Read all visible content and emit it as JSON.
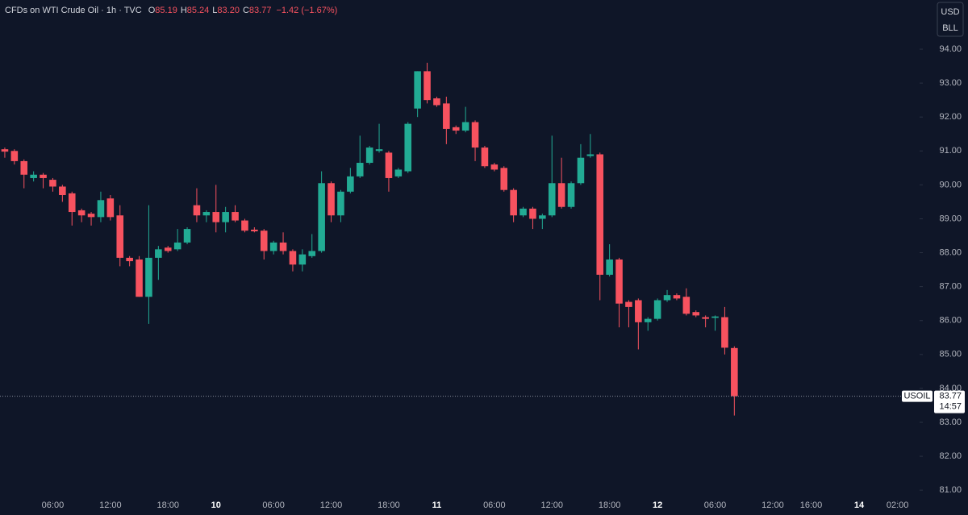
{
  "header": {
    "symbol": "CFDs on WTI Crude Oil · 1h · TVC",
    "ohlc": [
      {
        "label": "O",
        "value": "85.19"
      },
      {
        "label": "H",
        "value": "85.24"
      },
      {
        "label": "L",
        "value": "83.20"
      },
      {
        "label": "C",
        "value": "83.77"
      }
    ],
    "change": "−1.42 (−1.67%)",
    "currency": "USD",
    "unit": "BLL",
    "ticker": "USOIL",
    "countdown": "14:57"
  },
  "chart_data": {
    "type": "candlestick",
    "up_color": "#22ab94",
    "down_color": "#f7525f",
    "x": [
      0,
      1,
      2,
      3,
      4,
      5,
      6,
      7,
      8,
      9,
      10,
      11,
      12,
      13,
      14,
      15,
      16,
      17,
      18,
      19,
      20,
      21,
      22,
      23,
      24,
      25,
      26,
      27,
      28,
      29,
      30,
      31,
      32,
      33,
      34,
      35,
      36,
      37,
      38,
      39,
      40,
      41,
      42,
      43,
      44,
      45,
      46,
      47,
      48,
      49,
      50,
      51,
      52,
      53,
      54,
      55,
      56,
      57,
      58,
      59,
      60,
      61,
      62,
      63,
      64,
      65,
      66,
      67,
      68,
      69,
      70,
      71,
      72,
      73,
      74,
      75,
      76
    ],
    "open": [
      91.05,
      91.0,
      90.7,
      90.2,
      90.3,
      90.15,
      89.95,
      89.75,
      89.25,
      89.15,
      89.05,
      89.6,
      89.1,
      87.85,
      87.8,
      86.7,
      87.85,
      88.15,
      88.1,
      88.3,
      89.4,
      89.1,
      89.2,
      88.9,
      89.2,
      88.95,
      88.68,
      88.65,
      88.05,
      88.3,
      88.05,
      87.65,
      87.9,
      88.05,
      90.05,
      89.1,
      89.8,
      90.25,
      90.65,
      91.0,
      90.95,
      90.25,
      90.4,
      92.25,
      93.35,
      92.55,
      92.4,
      91.7,
      91.6,
      91.85,
      91.1,
      90.6,
      90.5,
      89.85,
      89.1,
      89.3,
      89.0,
      89.1,
      90.05,
      89.35,
      90.05,
      90.85,
      90.9,
      87.35,
      87.8,
      86.55,
      86.6,
      85.95,
      86.05,
      86.6,
      86.75,
      86.7,
      86.25,
      86.1,
      86.08,
      86.1,
      85.19
    ],
    "high": [
      91.1,
      91.05,
      90.75,
      90.4,
      90.35,
      90.2,
      90.0,
      89.8,
      89.3,
      89.2,
      89.8,
      89.7,
      89.4,
      87.9,
      87.9,
      89.4,
      88.2,
      88.2,
      88.7,
      88.75,
      89.9,
      89.25,
      90.0,
      89.35,
      89.4,
      89.0,
      88.75,
      88.7,
      88.35,
      88.6,
      88.1,
      88.1,
      88.55,
      90.4,
      90.1,
      89.85,
      90.5,
      91.45,
      91.15,
      91.8,
      91.0,
      90.5,
      91.85,
      93.35,
      93.6,
      92.6,
      92.6,
      91.75,
      92.3,
      91.9,
      91.15,
      90.65,
      90.55,
      89.9,
      89.35,
      89.35,
      89.15,
      91.45,
      90.8,
      90.1,
      91.2,
      91.5,
      90.95,
      88.25,
      87.85,
      86.6,
      86.65,
      86.1,
      86.65,
      86.9,
      86.8,
      86.95,
      86.3,
      86.15,
      86.15,
      86.4,
      85.24
    ],
    "low": [
      90.8,
      90.6,
      89.9,
      90.1,
      89.9,
      89.8,
      89.5,
      88.8,
      88.9,
      88.8,
      88.9,
      88.95,
      87.6,
      87.6,
      86.7,
      85.9,
      87.2,
      88.0,
      88.05,
      88.25,
      88.9,
      88.9,
      88.6,
      88.6,
      88.9,
      88.6,
      88.6,
      87.8,
      87.95,
      87.95,
      87.45,
      87.45,
      87.85,
      88.0,
      88.9,
      88.9,
      89.75,
      90.2,
      90.6,
      90.95,
      89.8,
      90.2,
      90.35,
      92.0,
      92.4,
      92.3,
      91.2,
      91.5,
      91.55,
      90.7,
      90.5,
      90.4,
      89.8,
      88.9,
      89.05,
      88.7,
      88.7,
      89.05,
      89.3,
      89.3,
      90.0,
      90.8,
      86.6,
      87.3,
      85.8,
      85.8,
      85.15,
      85.7,
      86.0,
      86.55,
      86.6,
      86.15,
      86.1,
      85.8,
      85.7,
      85.0,
      83.2
    ],
    "close": [
      90.98,
      90.7,
      90.3,
      90.3,
      90.2,
      89.95,
      89.7,
      89.2,
      89.1,
      89.05,
      89.55,
      89.05,
      87.85,
      87.75,
      86.7,
      87.85,
      88.1,
      88.05,
      88.3,
      88.7,
      89.1,
      89.2,
      88.9,
      89.2,
      88.95,
      88.65,
      88.63,
      88.05,
      88.3,
      88.05,
      87.65,
      87.95,
      88.05,
      90.05,
      89.1,
      89.8,
      90.25,
      90.65,
      91.1,
      91.05,
      90.2,
      90.45,
      91.8,
      93.35,
      92.5,
      92.35,
      91.65,
      91.6,
      91.85,
      91.1,
      90.55,
      90.45,
      89.85,
      89.1,
      89.3,
      89.0,
      89.1,
      90.05,
      89.35,
      90.05,
      90.8,
      90.9,
      87.35,
      87.8,
      86.5,
      86.4,
      85.95,
      86.05,
      86.6,
      86.75,
      86.65,
      86.2,
      86.15,
      86.05,
      86.12,
      85.2,
      83.77
    ],
    "xlim": [
      -0.5,
      95.3
    ],
    "ylim": [
      80.6,
      95.45
    ],
    "xticks": [
      {
        "value": 5,
        "label": "06:00"
      },
      {
        "value": 11,
        "label": "12:00"
      },
      {
        "value": 17,
        "label": "18:00"
      },
      {
        "value": 22,
        "label": "10"
      },
      {
        "value": 28,
        "label": "06:00"
      },
      {
        "value": 34,
        "label": "12:00"
      },
      {
        "value": 40,
        "label": "18:00"
      },
      {
        "value": 45,
        "label": "11"
      },
      {
        "value": 51,
        "label": "06:00"
      },
      {
        "value": 57,
        "label": "12:00"
      },
      {
        "value": 63,
        "label": "18:00"
      },
      {
        "value": 68,
        "label": "12"
      },
      {
        "value": 74,
        "label": "06:00"
      },
      {
        "value": 80,
        "label": "12:00"
      },
      {
        "value": 84,
        "label": "16:00"
      },
      {
        "value": 89,
        "label": "14"
      },
      {
        "value": 93,
        "label": "02:00"
      }
    ],
    "yticks": [
      {
        "value": 81,
        "label": "81.00"
      },
      {
        "value": 82,
        "label": "82.00"
      },
      {
        "value": 83,
        "label": "83.00"
      },
      {
        "value": 84,
        "label": "84.00"
      },
      {
        "value": 85,
        "label": "85.00"
      },
      {
        "value": 86,
        "label": "86.00"
      },
      {
        "value": 87,
        "label": "87.00"
      },
      {
        "value": 88,
        "label": "88.00"
      },
      {
        "value": 89,
        "label": "89.00"
      },
      {
        "value": 90,
        "label": "90.00"
      },
      {
        "value": 91,
        "label": "91.00"
      },
      {
        "value": 92,
        "label": "92.00"
      },
      {
        "value": 93,
        "label": "93.00"
      },
      {
        "value": 94,
        "label": "94.00"
      }
    ]
  }
}
